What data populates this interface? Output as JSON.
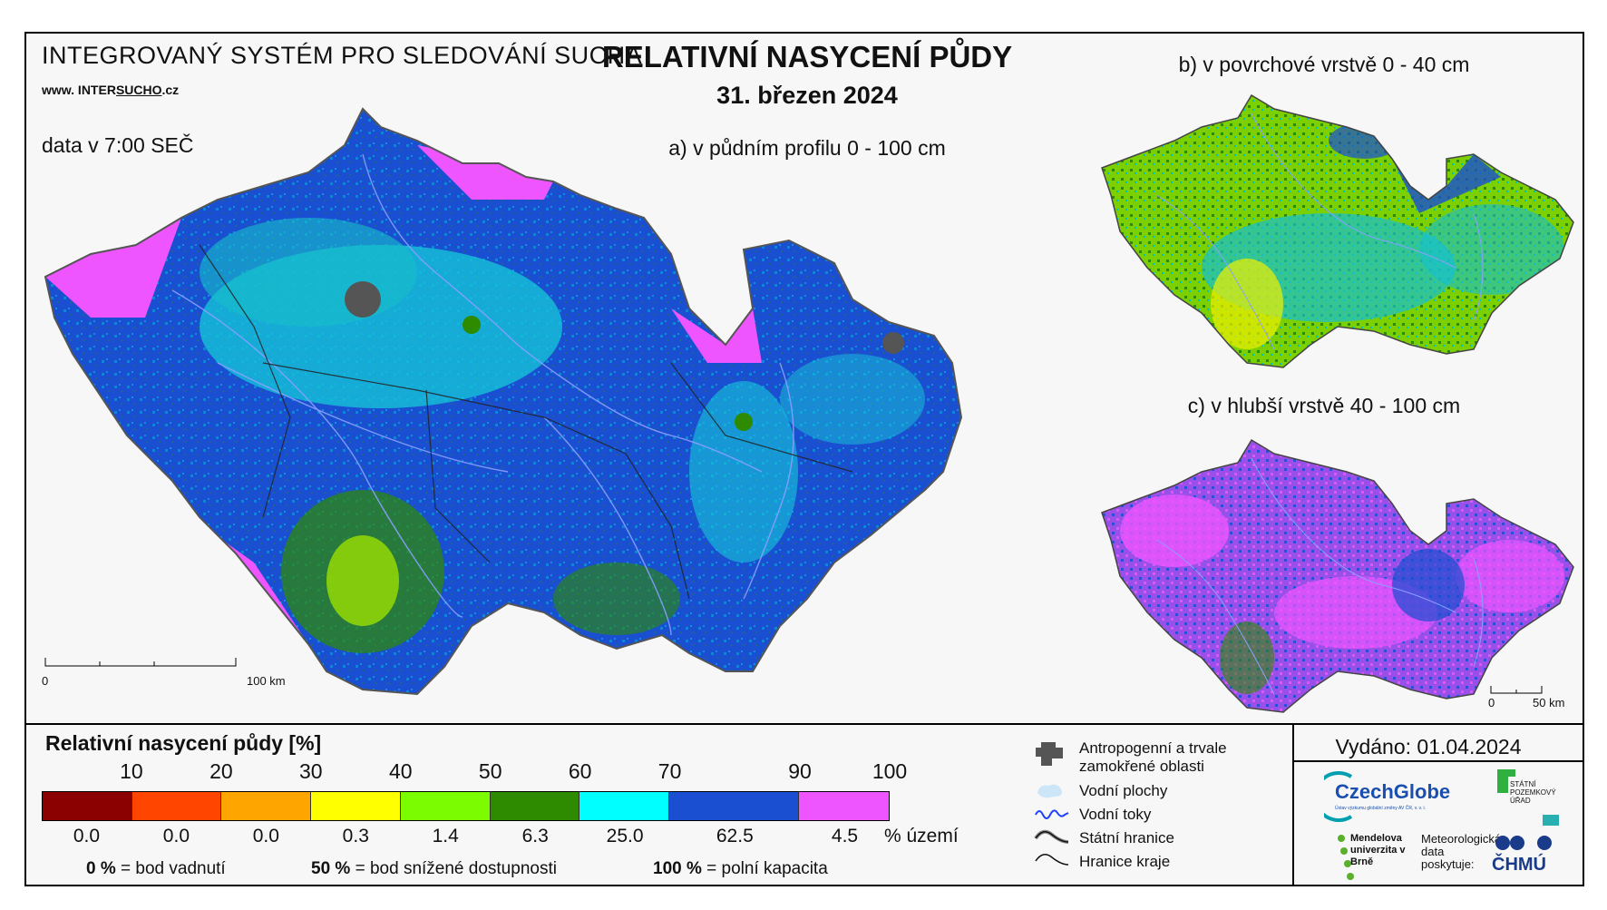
{
  "header": {
    "system_title": "INTEGROVANÝ SYSTÉM PRO SLEDOVÁNÍ SUCHA",
    "site_prefix": "www. INTER",
    "site_highlight": "SUCHO",
    "site_suffix": ".cz",
    "data_time": "data v 7:00 SEČ",
    "main_title": "RELATIVNÍ NASYCENÍ PŮDY",
    "main_date": "31. březen 2024"
  },
  "maps": {
    "a_label": "a) v půdním profilu 0 - 100 cm",
    "b_label": "b) v povrchové vrstvě 0 - 40 cm",
    "c_label": "c) v hlubší vrstvě 40 - 100 cm",
    "scale_main": {
      "start": "0",
      "end": "100 km"
    },
    "scale_small": {
      "start": "0",
      "end": "50 km"
    }
  },
  "legend": {
    "title": "Relativní nasycení půdy [%]",
    "thresholds": [
      "10",
      "20",
      "30",
      "40",
      "50",
      "60",
      "70",
      "90",
      "100"
    ],
    "classes": [
      {
        "color": "#8b0000",
        "share": "0.0"
      },
      {
        "color": "#ff4500",
        "share": "0.0"
      },
      {
        "color": "#ffa500",
        "share": "0.0"
      },
      {
        "color": "#ffff00",
        "share": "0.3"
      },
      {
        "color": "#7cfc00",
        "share": "1.4"
      },
      {
        "color": "#2e8b00",
        "share": "6.3"
      },
      {
        "color": "#00ffff",
        "share": "25.0"
      },
      {
        "color": "#1a4fd1",
        "share": "62.5"
      },
      {
        "color": "#ee55ff",
        "share": "4.5"
      }
    ],
    "share_unit": "% území",
    "notes": [
      {
        "value": "0 %",
        "text": " = bod vadnutí"
      },
      {
        "value": "50 %",
        "text": " = bod snížené dostupnosti"
      },
      {
        "value": "100 %",
        "text": " = polní kapacita"
      }
    ]
  },
  "map_legend": {
    "anthropogenic": "Antropogenní a trvale zamokřené oblasti",
    "water_areas": "Vodní plochy",
    "rivers": "Vodní toky",
    "state_border": "Státní hranice",
    "region_border": "Hranice kraje"
  },
  "issued": "Vydáno: 01.04.2024",
  "logos": {
    "czechglobe": "CzechGlobe",
    "czechglobe_sub": "Ústav výzkumu globální změny AV ČR, v. v. i.",
    "spu": "STÁTNÍ POZEMKOVÝ ÚŘAD",
    "mendel": "Mendelova univerzita v Brně",
    "meteo": "Meteorologická data poskytuje:",
    "chmu": "ČHMÚ"
  }
}
